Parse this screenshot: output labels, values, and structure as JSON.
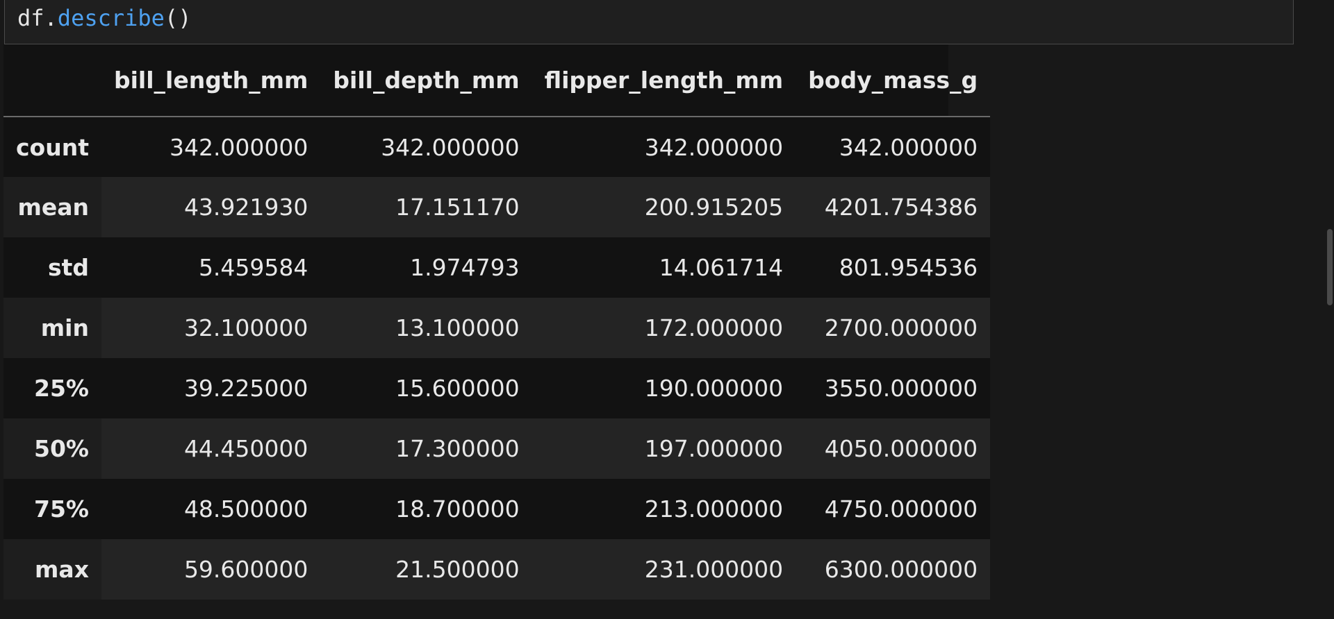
{
  "cell": {
    "code": {
      "object": "df",
      "dot": ".",
      "method": "describe",
      "parens": "()"
    }
  },
  "output": {
    "table": {
      "columns": [
        "",
        "bill_length_mm",
        "bill_depth_mm",
        "flipper_length_mm",
        "body_mass_g"
      ],
      "rows": [
        {
          "index": "count",
          "values": [
            "342.000000",
            "342.000000",
            "342.000000",
            "342.000000"
          ]
        },
        {
          "index": "mean",
          "values": [
            "43.921930",
            "17.151170",
            "200.915205",
            "4201.754386"
          ]
        },
        {
          "index": "std",
          "values": [
            "5.459584",
            "1.974793",
            "14.061714",
            "801.954536"
          ]
        },
        {
          "index": "min",
          "values": [
            "32.100000",
            "13.100000",
            "172.000000",
            "2700.000000"
          ]
        },
        {
          "index": "25%",
          "values": [
            "39.225000",
            "15.600000",
            "190.000000",
            "3550.000000"
          ]
        },
        {
          "index": "50%",
          "values": [
            "44.450000",
            "17.300000",
            "197.000000",
            "4050.000000"
          ]
        },
        {
          "index": "75%",
          "values": [
            "48.500000",
            "18.700000",
            "213.000000",
            "4750.000000"
          ]
        },
        {
          "index": "max",
          "values": [
            "59.600000",
            "21.500000",
            "231.000000",
            "6300.000000"
          ]
        }
      ]
    }
  },
  "colors": {
    "background": "#181818",
    "method_token": "#4ea1f0",
    "row_alt": "#242424"
  }
}
